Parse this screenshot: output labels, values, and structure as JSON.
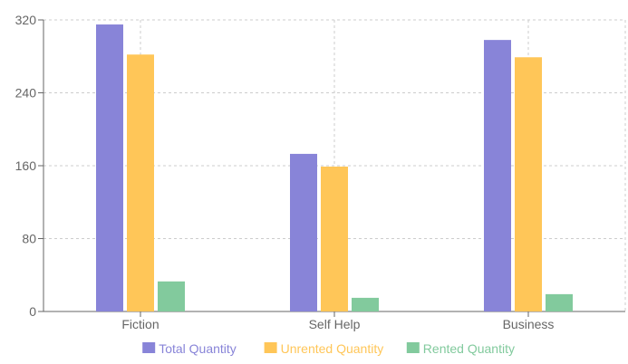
{
  "chart_data": {
    "type": "bar",
    "title": "",
    "xlabel": "",
    "ylabel": "",
    "categories": [
      "Fiction",
      "Self Help",
      "Business"
    ],
    "ylim": [
      0,
      320
    ],
    "yticks": [
      0,
      80,
      160,
      240,
      320
    ],
    "grid": true,
    "legend_position": "bottom",
    "series": [
      {
        "name": "Total Quantity",
        "color": "#8884d8",
        "values": [
          315,
          173,
          298
        ]
      },
      {
        "name": "Unrented Quantity",
        "color": "#ffc658",
        "values": [
          282,
          159,
          279
        ]
      },
      {
        "name": "Rented Quantity",
        "color": "#82ca9d",
        "values": [
          33,
          15,
          19
        ]
      }
    ]
  }
}
